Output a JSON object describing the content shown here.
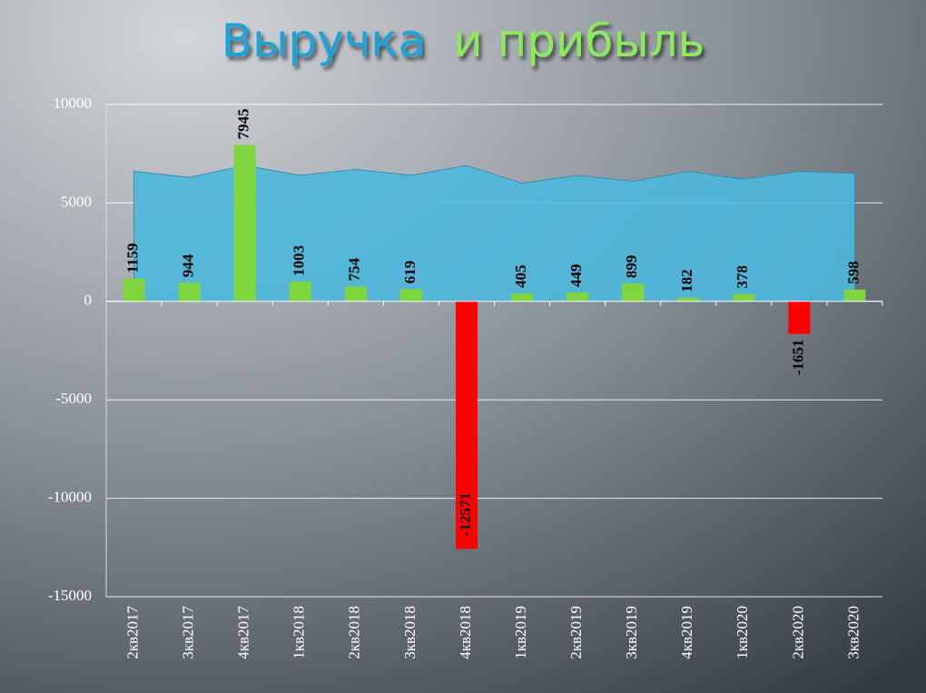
{
  "chart_data": {
    "type": "bar",
    "title_parts": [
      "Выручка",
      "и прибыль"
    ],
    "categories": [
      "2кв2017",
      "3кв2017",
      "4кв2017",
      "1кв2018",
      "2кв2018",
      "3кв2018",
      "4кв2018",
      "1кв2019",
      "2кв2019",
      "3кв2019",
      "4кв2019",
      "1кв2020",
      "2кв2020",
      "3кв2020"
    ],
    "series": [
      {
        "type": "area",
        "color": "#4db8dd",
        "values": [
          6600,
          6300,
          6900,
          6400,
          6700,
          6400,
          6900,
          6000,
          6400,
          6100,
          6600,
          6200,
          6600,
          6500
        ]
      },
      {
        "type": "bar",
        "color": "#7ed63c",
        "negative_color": "#ff0000",
        "values": [
          1159,
          944,
          7945,
          1003,
          754,
          619,
          -12571,
          405,
          449,
          899,
          182,
          378,
          -1651,
          598
        ]
      }
    ],
    "ylim": [
      -15000,
      10000
    ],
    "yticks": [
      -15000,
      -10000,
      -5000,
      0,
      5000,
      10000
    ],
    "grid": true
  }
}
